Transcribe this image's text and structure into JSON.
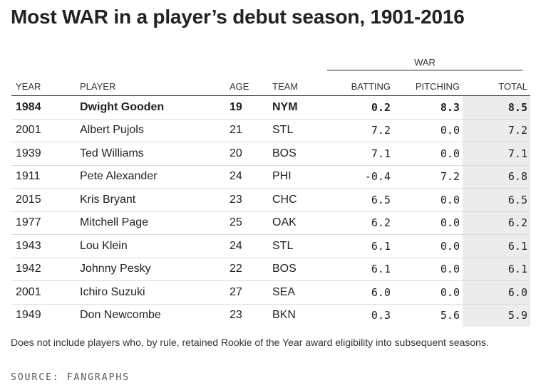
{
  "title": "Most WAR in a player’s debut season, 1901-2016",
  "group_header": "WAR",
  "columns": {
    "year": "YEAR",
    "player": "PLAYER",
    "age": "AGE",
    "team": "TEAM",
    "batting": "BATTING",
    "pitching": "PITCHING",
    "total": "TOTAL"
  },
  "rows": [
    {
      "year": "1984",
      "player": "Dwight Gooden",
      "age": "19",
      "team": "NYM",
      "batting": "0.2",
      "pitching": "8.3",
      "total": "8.5"
    },
    {
      "year": "2001",
      "player": "Albert Pujols",
      "age": "21",
      "team": "STL",
      "batting": "7.2",
      "pitching": "0.0",
      "total": "7.2"
    },
    {
      "year": "1939",
      "player": "Ted Williams",
      "age": "20",
      "team": "BOS",
      "batting": "7.1",
      "pitching": "0.0",
      "total": "7.1"
    },
    {
      "year": "1911",
      "player": "Pete Alexander",
      "age": "24",
      "team": "PHI",
      "batting": "-0.4",
      "pitching": "7.2",
      "total": "6.8"
    },
    {
      "year": "2015",
      "player": "Kris Bryant",
      "age": "23",
      "team": "CHC",
      "batting": "6.5",
      "pitching": "0.0",
      "total": "6.5"
    },
    {
      "year": "1977",
      "player": "Mitchell Page",
      "age": "25",
      "team": "OAK",
      "batting": "6.2",
      "pitching": "0.0",
      "total": "6.2"
    },
    {
      "year": "1943",
      "player": "Lou Klein",
      "age": "24",
      "team": "STL",
      "batting": "6.1",
      "pitching": "0.0",
      "total": "6.1"
    },
    {
      "year": "1942",
      "player": "Johnny Pesky",
      "age": "22",
      "team": "BOS",
      "batting": "6.1",
      "pitching": "0.0",
      "total": "6.1"
    },
    {
      "year": "2001",
      "player": "Ichiro Suzuki",
      "age": "27",
      "team": "SEA",
      "batting": "6.0",
      "pitching": "0.0",
      "total": "6.0"
    },
    {
      "year": "1949",
      "player": "Don Newcombe",
      "age": "23",
      "team": "BKN",
      "batting": "0.3",
      "pitching": "5.6",
      "total": "5.9"
    }
  ],
  "note": "Does not include players who, by rule, retained Rookie of the Year award eligibility into subsequent seasons.",
  "source": "SOURCE: FANGRAPHS"
}
